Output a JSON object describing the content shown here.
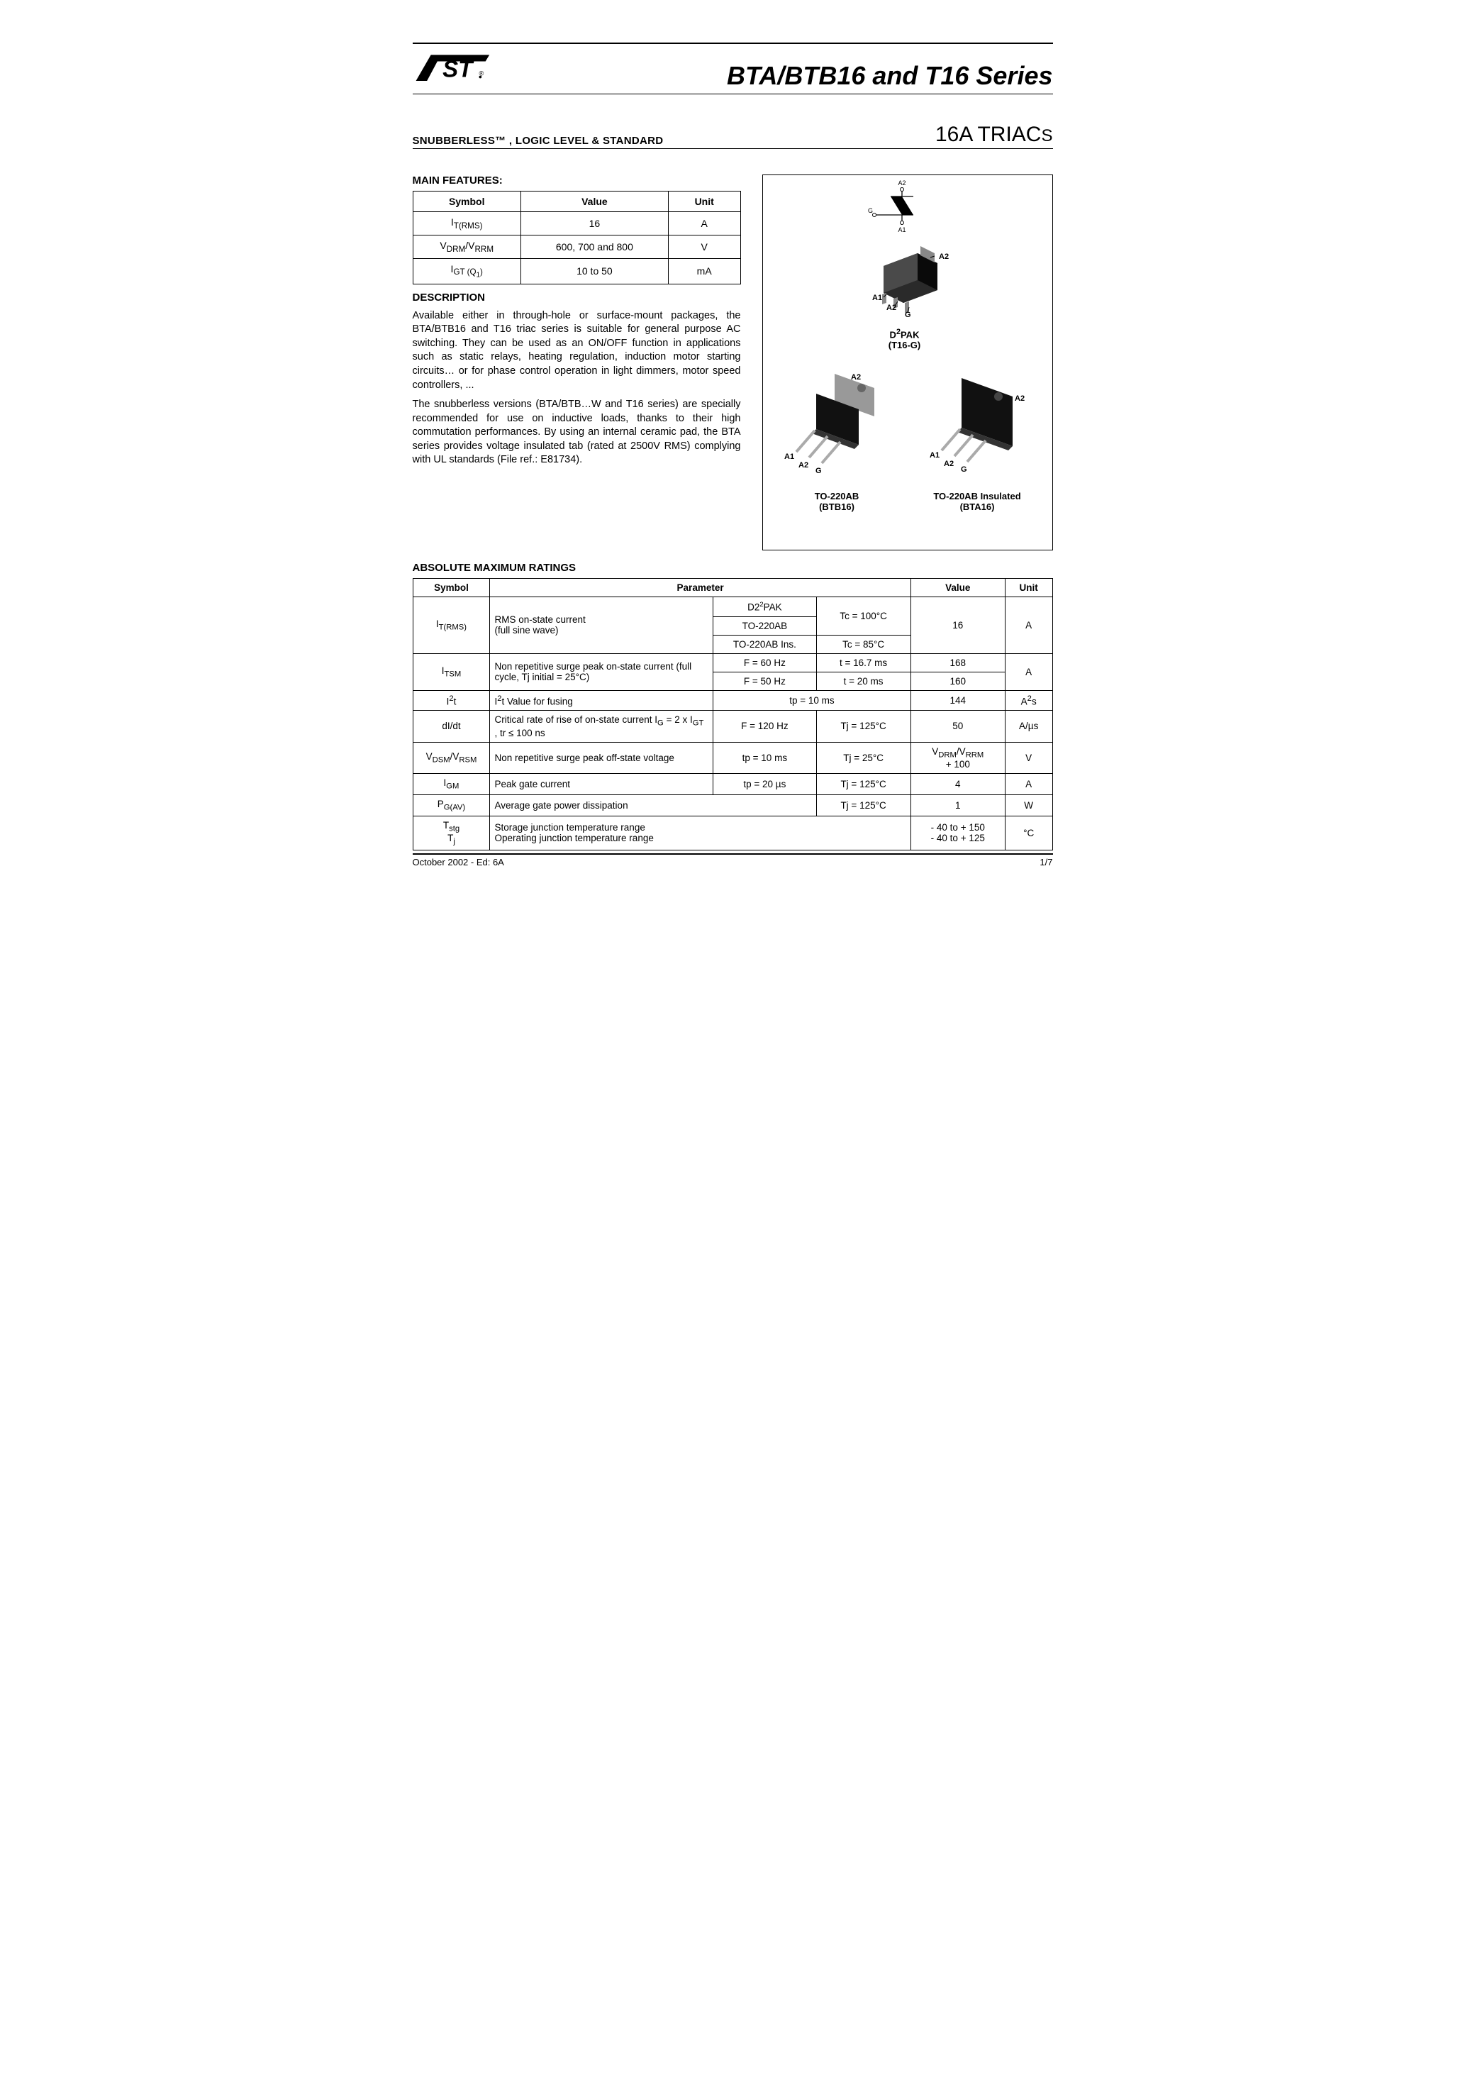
{
  "header": {
    "title": "BTA/BTB16 and T16 Series",
    "subtitle_left": "SNUBBERLESS™ , LOGIC LEVEL & STANDARD",
    "subtitle_right_main": "16A TRIAC",
    "subtitle_right_suffix": "S"
  },
  "main_features": {
    "heading": "MAIN FEATURES:",
    "columns": [
      "Symbol",
      "Value",
      "Unit"
    ],
    "rows": [
      {
        "sym_html": "I<sub>T(RMS)</sub>",
        "value": "16",
        "unit": "A"
      },
      {
        "sym_html": "V<sub>DRM</sub>/V<sub>RRM</sub>",
        "value": "600, 700 and 800",
        "unit": "V"
      },
      {
        "sym_html": "I<sub>GT (Q<sub>1</sub>)</sub>",
        "value": "10 to 50",
        "unit": "mA"
      }
    ]
  },
  "description": {
    "heading": "DESCRIPTION",
    "p1": "Available either in through-hole or surface-mount packages, the BTA/BTB16 and T16 triac series is suitable for general purpose AC switching. They can be used as an ON/OFF function in applications such as static relays, heating regulation, induction motor starting circuits… or for phase control operation in light dimmers, motor speed controllers, ...",
    "p2": "The snubberless versions (BTA/BTB…W and T16 series) are specially recommended for use on inductive loads, thanks to their high commutation performances. By using an internal ceramic pad, the BTA series provides voltage insulated tab (rated at 2500V RMS) complying with UL standards (File ref.: E81734)."
  },
  "packages": {
    "schem_pins": {
      "top": "A2",
      "left": "G",
      "bottom": "A1"
    },
    "d2pak": {
      "label_l1": "D",
      "label_sup": "2",
      "label_l1b": "PAK",
      "label_l2": "(T16-G)",
      "pins": [
        "A1",
        "A2",
        "G",
        "A2"
      ]
    },
    "to220": {
      "label_l1": "TO-220AB",
      "label_l2": "(BTB16)",
      "pins": [
        "A1",
        "A2",
        "G",
        "A2"
      ]
    },
    "to220ins": {
      "label_l1": "TO-220AB Insulated",
      "label_l2": "(BTA16)",
      "pins": [
        "A1",
        "A2",
        "G",
        "A2"
      ]
    }
  },
  "abs": {
    "heading": "ABSOLUTE MAXIMUM RATINGS",
    "columns": [
      "Symbol",
      "Parameter",
      "Value",
      "Unit"
    ],
    "r1": {
      "sym": "I<sub>T(RMS)</sub>",
      "param": "RMS on-state current\n(full sine wave)",
      "c1a": "D2",
      "c1a_sup": "2",
      "c1a_b": "PAK",
      "c1b": "TO-220AB",
      "c1c": "TO-220AB Ins.",
      "c2a": "Tc = 100°C",
      "c2b": "Tc = 85°C",
      "value": "16",
      "unit": "A"
    },
    "r2": {
      "sym": "I<sub>TSM</sub>",
      "param": "Non repetitive surge peak on-state current  (full cycle, Tj initial = 25°C)",
      "c1a": "F = 60 Hz",
      "c2a": "t = 16.7 ms",
      "va": "168",
      "c1b": "F = 50 Hz",
      "c2b": "t = 20 ms",
      "vb": "160",
      "unit": "A"
    },
    "r3": {
      "sym": "I<sup>2</sup>t",
      "param": "I<sup>2</sup>t Value for fusing",
      "cond": "tp = 10 ms",
      "value": "144",
      "unit": "A<sup>2</sup>s"
    },
    "r4": {
      "sym": "dI/dt",
      "param": "Critical rate of rise of on-state current I<sub>G</sub> = 2 x I<sub>GT</sub> , tr ≤ 100 ns",
      "c1": "F = 120 Hz",
      "c2": "Tj = 125°C",
      "value": "50",
      "unit": "A/µs"
    },
    "r5": {
      "sym": "V<sub>DSM</sub>/V<sub>RSM</sub>",
      "param": "Non repetitive surge peak off-state voltage",
      "c1": "tp = 10 ms",
      "c2": "Tj = 25°C",
      "value": "V<sub>DRM</sub>/V<sub>RRM</sub><br>+ 100",
      "unit": "V"
    },
    "r6": {
      "sym": "I<sub>GM</sub>",
      "param": "Peak gate current",
      "c1": "tp = 20 µs",
      "c2": "Tj = 125°C",
      "value": "4",
      "unit": "A"
    },
    "r7": {
      "sym": "P<sub>G(AV)</sub>",
      "param": "Average gate power dissipation",
      "c2": "Tj = 125°C",
      "value": "1",
      "unit": "W"
    },
    "r8": {
      "sym": "T<sub>stg</sub><br>T<sub>j</sub>",
      "param": "Storage junction temperature range\nOperating junction temperature range",
      "value": "- 40 to + 150<br>- 40 to + 125",
      "unit": "°C"
    }
  },
  "footer": {
    "left": "October 2002 - Ed: 6A",
    "right": "1/7"
  }
}
